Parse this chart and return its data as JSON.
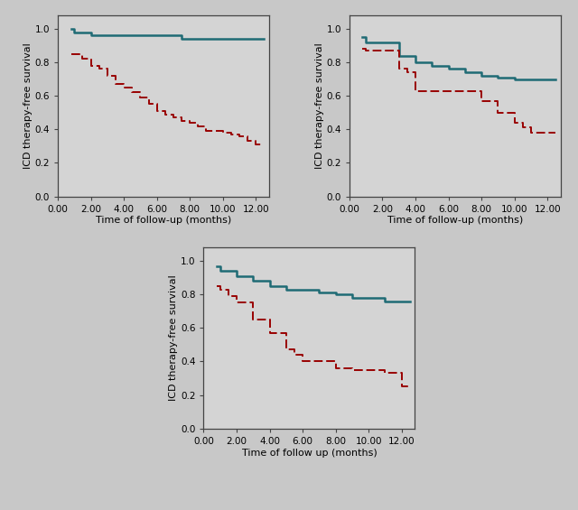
{
  "background_color": "#c8c8c8",
  "plot_bg_color": "#d4d4d4",
  "teal_color": "#1f6b75",
  "red_color": "#990000",
  "ylabel": "ICD therapy-free survival",
  "xlabel_hyphen": "Time of follow-up (months)",
  "xlabel_space": "Time of follow up (months)",
  "yticks": [
    0.0,
    0.2,
    0.4,
    0.6,
    0.8,
    1.0
  ],
  "xticks": [
    0.0,
    2.0,
    4.0,
    6.0,
    8.0,
    10.0,
    12.0
  ],
  "ylim": [
    0.0,
    1.08
  ],
  "xlim": [
    0.0,
    12.8
  ],
  "plot1_teal_x": [
    0.8,
    1.0,
    1.0,
    2.0,
    2.0,
    7.5,
    7.5,
    12.5
  ],
  "plot1_teal_y": [
    1.0,
    1.0,
    0.98,
    0.98,
    0.96,
    0.96,
    0.94,
    0.94
  ],
  "plot1_red_x": [
    0.8,
    1.0,
    1.5,
    1.5,
    2.0,
    2.0,
    2.5,
    2.5,
    3.0,
    3.0,
    3.5,
    3.5,
    4.0,
    4.0,
    4.5,
    4.5,
    5.0,
    5.0,
    5.5,
    5.5,
    6.0,
    6.0,
    6.5,
    6.5,
    7.0,
    7.0,
    7.5,
    7.5,
    8.0,
    8.0,
    8.5,
    8.5,
    9.0,
    9.0,
    10.0,
    10.0,
    10.5,
    10.5,
    11.0,
    11.0,
    11.5,
    11.5,
    12.0,
    12.0,
    12.5
  ],
  "plot1_red_y": [
    0.85,
    0.85,
    0.85,
    0.82,
    0.82,
    0.78,
    0.78,
    0.76,
    0.76,
    0.72,
    0.72,
    0.67,
    0.67,
    0.65,
    0.65,
    0.62,
    0.62,
    0.59,
    0.59,
    0.55,
    0.55,
    0.51,
    0.51,
    0.49,
    0.49,
    0.47,
    0.47,
    0.45,
    0.45,
    0.44,
    0.44,
    0.42,
    0.42,
    0.39,
    0.39,
    0.38,
    0.38,
    0.37,
    0.37,
    0.36,
    0.36,
    0.33,
    0.33,
    0.31,
    0.31
  ],
  "plot2_teal_x": [
    0.8,
    1.0,
    1.0,
    3.0,
    3.0,
    4.0,
    4.0,
    5.0,
    5.0,
    6.0,
    6.0,
    7.0,
    7.0,
    8.0,
    8.0,
    9.0,
    9.0,
    10.0,
    10.0,
    12.5
  ],
  "plot2_teal_y": [
    0.95,
    0.95,
    0.92,
    0.92,
    0.84,
    0.84,
    0.8,
    0.8,
    0.78,
    0.78,
    0.76,
    0.76,
    0.74,
    0.74,
    0.72,
    0.72,
    0.71,
    0.71,
    0.7,
    0.7
  ],
  "plot2_red_x": [
    0.8,
    1.0,
    1.0,
    2.0,
    2.0,
    3.0,
    3.0,
    3.5,
    3.5,
    4.0,
    4.0,
    8.0,
    8.0,
    9.0,
    9.0,
    10.0,
    10.0,
    10.5,
    10.5,
    11.0,
    11.0,
    12.0,
    12.0,
    12.5
  ],
  "plot2_red_y": [
    0.88,
    0.88,
    0.87,
    0.87,
    0.87,
    0.87,
    0.76,
    0.76,
    0.74,
    0.74,
    0.63,
    0.63,
    0.57,
    0.57,
    0.5,
    0.5,
    0.44,
    0.44,
    0.41,
    0.41,
    0.38,
    0.38,
    0.38,
    0.38
  ],
  "plot3_teal_x": [
    0.8,
    1.0,
    1.0,
    2.0,
    2.0,
    3.0,
    3.0,
    4.0,
    4.0,
    5.0,
    5.0,
    7.0,
    7.0,
    8.0,
    8.0,
    9.0,
    9.0,
    11.0,
    11.0,
    12.5
  ],
  "plot3_teal_y": [
    0.97,
    0.97,
    0.94,
    0.94,
    0.91,
    0.91,
    0.88,
    0.88,
    0.85,
    0.85,
    0.83,
    0.83,
    0.81,
    0.81,
    0.8,
    0.8,
    0.78,
    0.78,
    0.76,
    0.76
  ],
  "plot3_red_x": [
    0.8,
    1.0,
    1.0,
    1.5,
    1.5,
    2.0,
    2.0,
    3.0,
    3.0,
    4.0,
    4.0,
    5.0,
    5.0,
    5.5,
    5.5,
    6.0,
    6.0,
    8.0,
    8.0,
    9.0,
    9.0,
    11.0,
    11.0,
    12.0,
    12.0,
    12.5
  ],
  "plot3_red_y": [
    0.85,
    0.85,
    0.83,
    0.83,
    0.79,
    0.79,
    0.75,
    0.75,
    0.65,
    0.65,
    0.57,
    0.57,
    0.47,
    0.47,
    0.44,
    0.44,
    0.4,
    0.4,
    0.36,
    0.36,
    0.35,
    0.35,
    0.33,
    0.33,
    0.25,
    0.25
  ],
  "tick_fontsize": 7.5,
  "label_fontsize": 8.0,
  "linewidth_teal": 1.8,
  "linewidth_red": 1.4
}
